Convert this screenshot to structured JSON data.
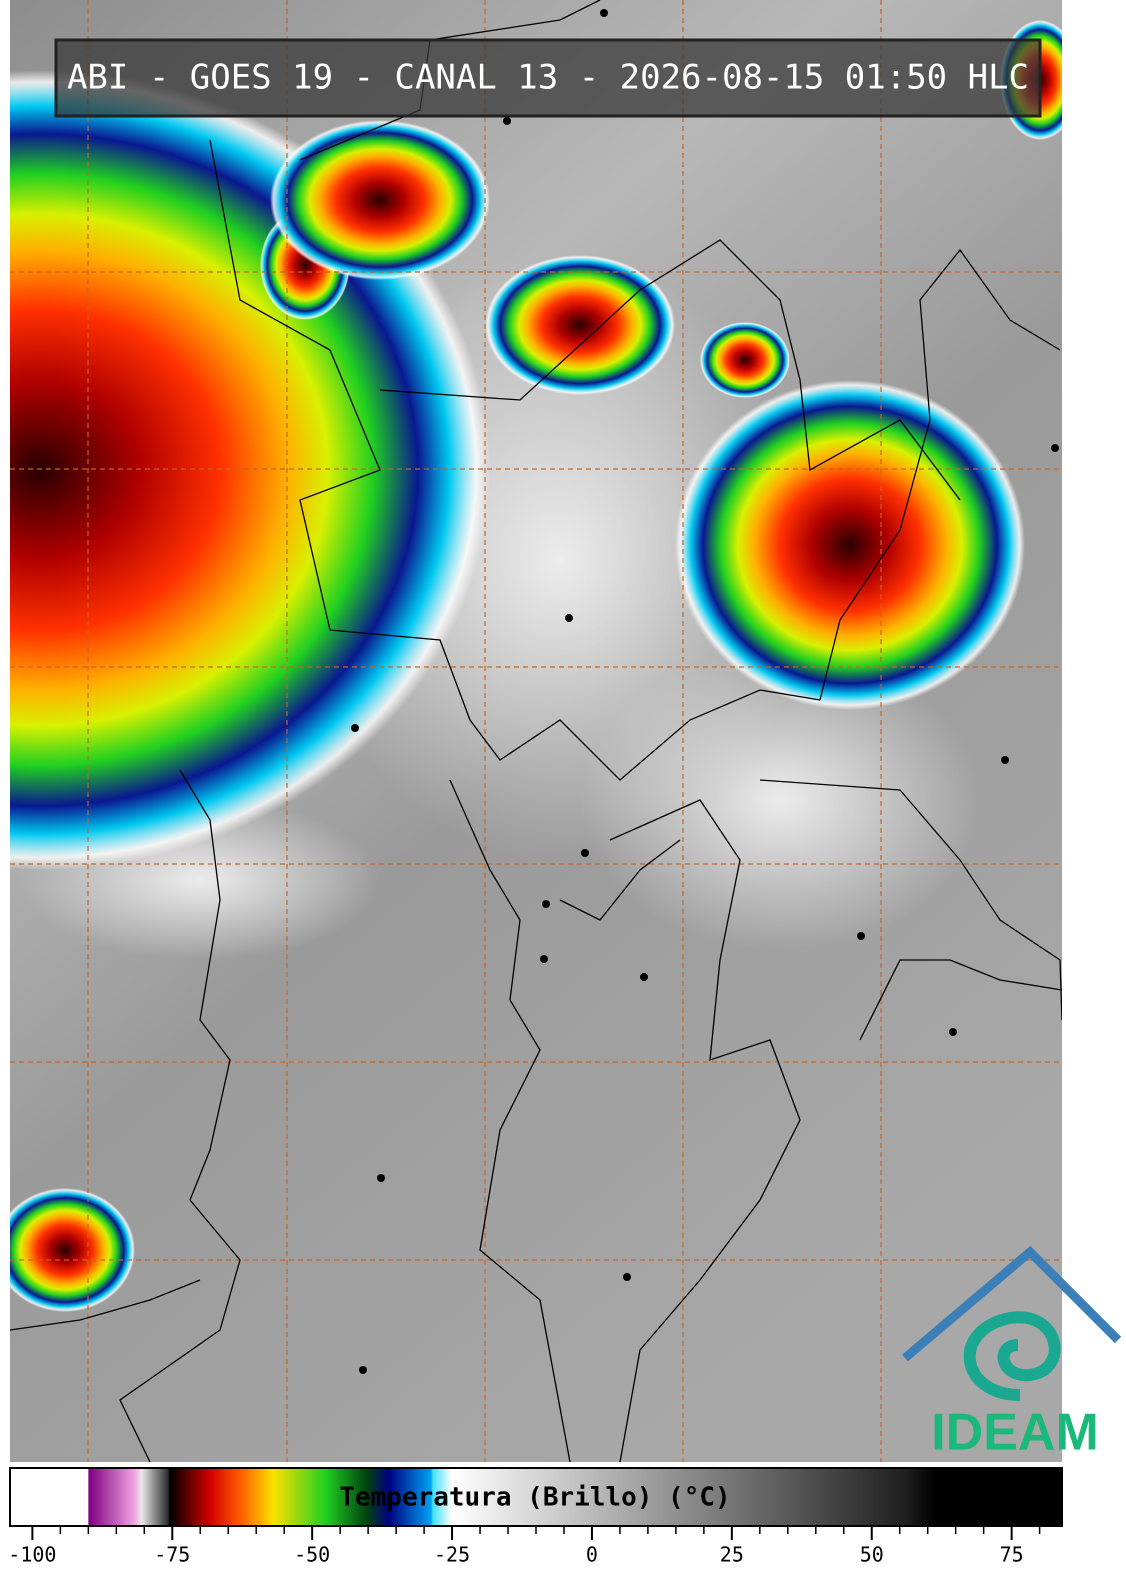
{
  "header": {
    "title": "ABI - GOES 19 - CANAL 13 - 2026-08-15 01:50 HLC"
  },
  "colorbar": {
    "label": "Temperatura (Brillo) (°C)",
    "xlim": [
      -104,
      84
    ],
    "xticks": [
      -100,
      -75,
      -50,
      -25,
      0,
      25,
      50,
      75
    ],
    "minor_xticks": [
      -95,
      -90,
      -85,
      -80,
      -70,
      -65,
      -60,
      -55,
      -45,
      -40,
      -35,
      -30,
      -20,
      -15,
      -10,
      -5,
      5,
      10,
      15,
      20,
      30,
      35,
      40,
      45,
      55,
      60,
      65,
      70,
      80
    ]
  },
  "logo": {
    "text": "IDEAM"
  }
}
